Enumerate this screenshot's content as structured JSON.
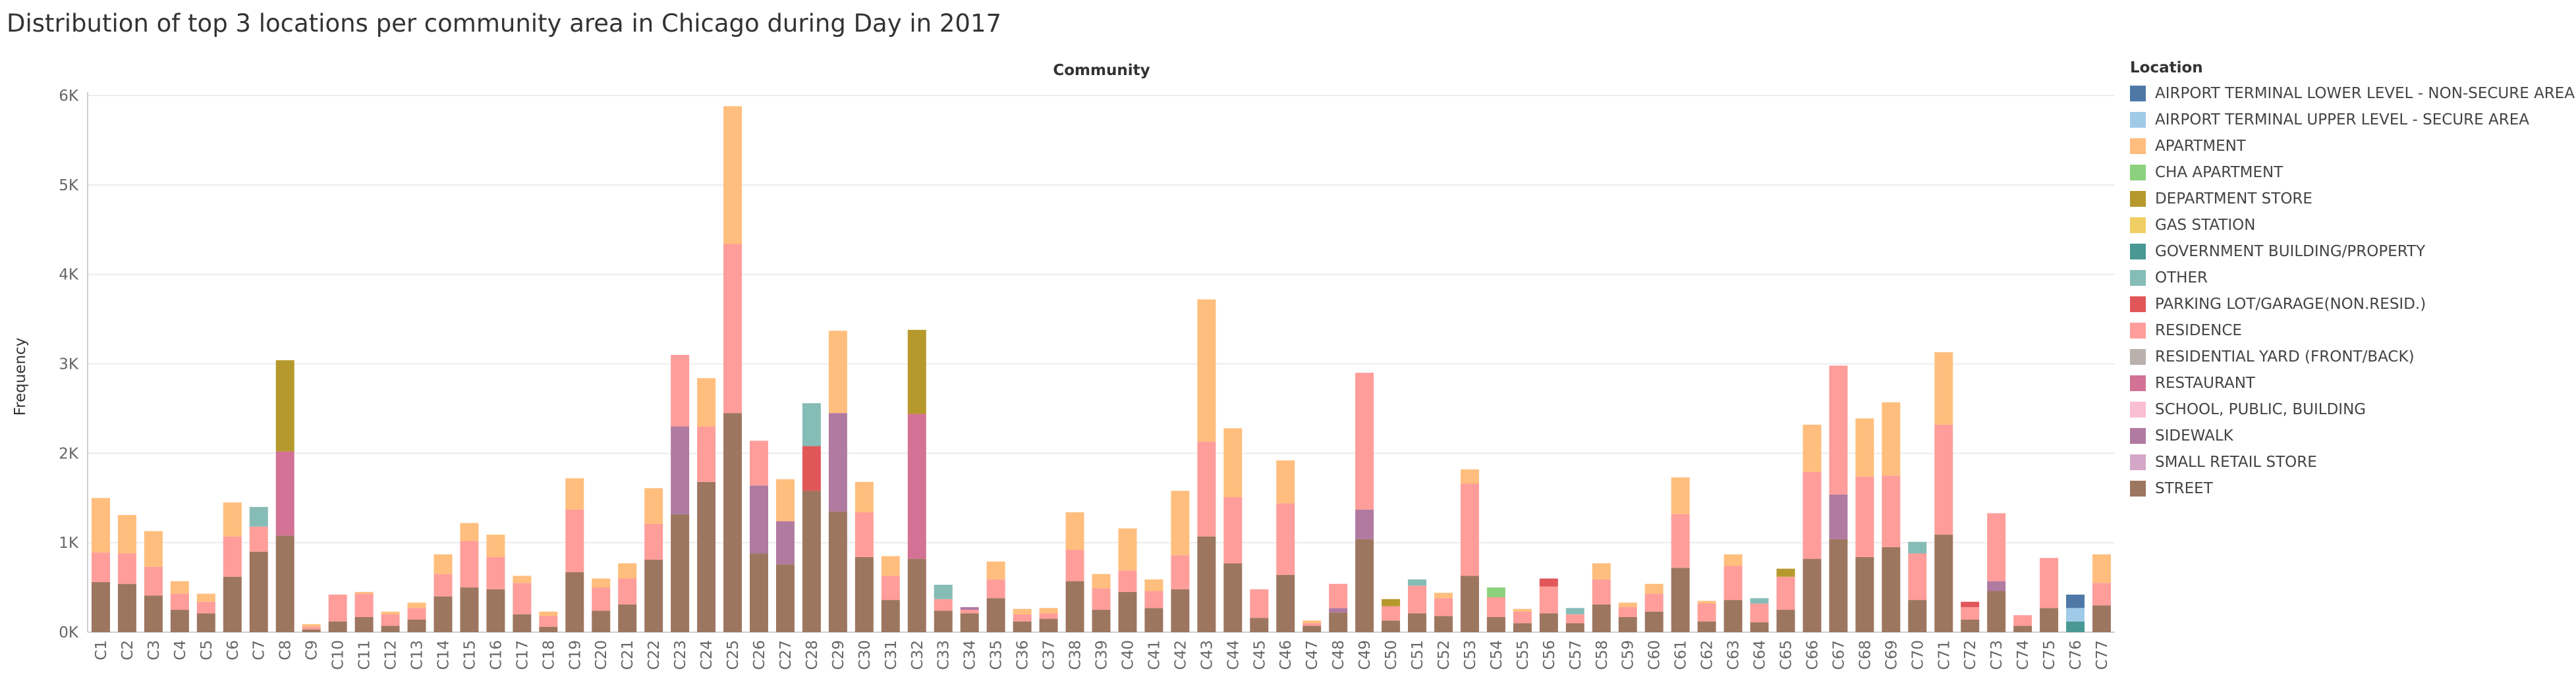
{
  "chart_data": {
    "type": "bar",
    "stacked": true,
    "title": "Distribution of top 3 locations per community area in Chicago during Day in 2017",
    "header": "Community",
    "ylabel": "Frequency",
    "ylim": [
      0,
      6000
    ],
    "y_ticks": [
      0,
      1000,
      2000,
      3000,
      4000,
      5000,
      6000
    ],
    "y_tick_labels": [
      "0K",
      "1K",
      "2K",
      "3K",
      "4K",
      "5K",
      "6K"
    ],
    "grid": "horizontal",
    "legend_position": "right",
    "legend_title": "Location",
    "locations": [
      {
        "name": "AIRPORT TERMINAL LOWER LEVEL - NON-SECURE AREA",
        "color": "#4e79a7"
      },
      {
        "name": "AIRPORT TERMINAL UPPER LEVEL - SECURE AREA",
        "color": "#a0cbe8"
      },
      {
        "name": "APARTMENT",
        "color": "#ffbe7d"
      },
      {
        "name": "CHA APARTMENT",
        "color": "#8cd17d"
      },
      {
        "name": "DEPARTMENT STORE",
        "color": "#b6992d"
      },
      {
        "name": "GAS STATION",
        "color": "#f1ce63"
      },
      {
        "name": "GOVERNMENT BUILDING/PROPERTY",
        "color": "#499894"
      },
      {
        "name": "OTHER",
        "color": "#86bcb6"
      },
      {
        "name": "PARKING LOT/GARAGE(NON.RESID.)",
        "color": "#e15759"
      },
      {
        "name": "RESIDENCE",
        "color": "#ff9d9a"
      },
      {
        "name": "RESIDENTIAL YARD (FRONT/BACK)",
        "color": "#bab0ac"
      },
      {
        "name": "RESTAURANT",
        "color": "#d37295"
      },
      {
        "name": "SCHOOL, PUBLIC, BUILDING",
        "color": "#fabfd2"
      },
      {
        "name": "SIDEWALK",
        "color": "#b07aa1"
      },
      {
        "name": "SMALL RETAIL STORE",
        "color": "#d4a6c8"
      },
      {
        "name": "STREET",
        "color": "#9d7660"
      }
    ],
    "categories": [
      "C1",
      "C2",
      "C3",
      "C4",
      "C5",
      "C6",
      "C7",
      "C8",
      "C9",
      "C10",
      "C11",
      "C12",
      "C13",
      "C14",
      "C15",
      "C16",
      "C17",
      "C18",
      "C19",
      "C20",
      "C21",
      "C22",
      "C23",
      "C24",
      "C25",
      "C26",
      "C27",
      "C28",
      "C29",
      "C30",
      "C31",
      "C32",
      "C33",
      "C34",
      "C35",
      "C36",
      "C37",
      "C38",
      "C39",
      "C40",
      "C41",
      "C42",
      "C43",
      "C44",
      "C45",
      "C46",
      "C47",
      "C48",
      "C49",
      "C50",
      "C51",
      "C52",
      "C53",
      "C54",
      "C55",
      "C56",
      "C57",
      "C58",
      "C59",
      "C60",
      "C61",
      "C62",
      "C63",
      "C64",
      "C65",
      "C66",
      "C67",
      "C68",
      "C69",
      "C70",
      "C71",
      "C72",
      "C73",
      "C74",
      "C75",
      "C76",
      "C77"
    ],
    "bars": [
      [
        [
          "STREET",
          560
        ],
        [
          "RESIDENCE",
          330
        ],
        [
          "APARTMENT",
          610
        ]
      ],
      [
        [
          "STREET",
          540
        ],
        [
          "RESIDENCE",
          340
        ],
        [
          "APARTMENT",
          430
        ]
      ],
      [
        [
          "STREET",
          410
        ],
        [
          "RESIDENCE",
          320
        ],
        [
          "APARTMENT",
          400
        ]
      ],
      [
        [
          "STREET",
          250
        ],
        [
          "RESIDENCE",
          180
        ],
        [
          "APARTMENT",
          140
        ]
      ],
      [
        [
          "STREET",
          210
        ],
        [
          "RESIDENCE",
          130
        ],
        [
          "APARTMENT",
          90
        ]
      ],
      [
        [
          "STREET",
          620
        ],
        [
          "RESIDENCE",
          450
        ],
        [
          "APARTMENT",
          380
        ]
      ],
      [
        [
          "STREET",
          900
        ],
        [
          "RESIDENCE",
          280
        ],
        [
          "OTHER",
          220
        ]
      ],
      [
        [
          "STREET",
          1080
        ],
        [
          "RESTAURANT",
          940
        ],
        [
          "DEPARTMENT STORE",
          1020
        ]
      ],
      [
        [
          "STREET",
          30
        ],
        [
          "RESIDENCE",
          30
        ],
        [
          "APARTMENT",
          30
        ]
      ],
      [
        [
          "STREET",
          120
        ],
        [
          "RESIDENCE",
          300
        ]
      ],
      [
        [
          "STREET",
          170
        ],
        [
          "RESIDENCE",
          260
        ],
        [
          "APARTMENT",
          20
        ]
      ],
      [
        [
          "STREET",
          70
        ],
        [
          "RESIDENCE",
          130
        ],
        [
          "APARTMENT",
          30
        ]
      ],
      [
        [
          "STREET",
          140
        ],
        [
          "RESIDENCE",
          130
        ],
        [
          "APARTMENT",
          60
        ]
      ],
      [
        [
          "STREET",
          400
        ],
        [
          "RESIDENCE",
          250
        ],
        [
          "APARTMENT",
          220
        ]
      ],
      [
        [
          "STREET",
          500
        ],
        [
          "RESIDENCE",
          520
        ],
        [
          "APARTMENT",
          200
        ]
      ],
      [
        [
          "STREET",
          480
        ],
        [
          "RESIDENCE",
          360
        ],
        [
          "APARTMENT",
          250
        ]
      ],
      [
        [
          "STREET",
          200
        ],
        [
          "RESIDENCE",
          350
        ],
        [
          "APARTMENT",
          80
        ]
      ],
      [
        [
          "STREET",
          60
        ],
        [
          "RESIDENCE",
          120
        ],
        [
          "APARTMENT",
          50
        ]
      ],
      [
        [
          "STREET",
          670
        ],
        [
          "RESIDENCE",
          700
        ],
        [
          "APARTMENT",
          350
        ]
      ],
      [
        [
          "STREET",
          240
        ],
        [
          "RESIDENCE",
          260
        ],
        [
          "APARTMENT",
          100
        ]
      ],
      [
        [
          "STREET",
          310
        ],
        [
          "RESIDENCE",
          290
        ],
        [
          "APARTMENT",
          170
        ]
      ],
      [
        [
          "STREET",
          810
        ],
        [
          "RESIDENCE",
          400
        ],
        [
          "APARTMENT",
          400
        ]
      ],
      [
        [
          "STREET",
          1320
        ],
        [
          "SIDEWALK",
          980
        ],
        [
          "RESIDENCE",
          800
        ]
      ],
      [
        [
          "STREET",
          1680
        ],
        [
          "RESIDENCE",
          620
        ],
        [
          "APARTMENT",
          540
        ]
      ],
      [
        [
          "STREET",
          2450
        ],
        [
          "RESIDENCE",
          1890
        ],
        [
          "APARTMENT",
          1540
        ]
      ],
      [
        [
          "STREET",
          880
        ],
        [
          "SIDEWALK",
          760
        ],
        [
          "RESIDENCE",
          500
        ]
      ],
      [
        [
          "STREET",
          760
        ],
        [
          "SIDEWALK",
          480
        ],
        [
          "APARTMENT",
          470
        ]
      ],
      [
        [
          "STREET",
          1580
        ],
        [
          "PARKING LOT/GARAGE(NON.RESID.)",
          500
        ],
        [
          "OTHER",
          480
        ]
      ],
      [
        [
          "STREET",
          1350
        ],
        [
          "SIDEWALK",
          1100
        ],
        [
          "APARTMENT",
          920
        ]
      ],
      [
        [
          "STREET",
          840
        ],
        [
          "RESIDENCE",
          500
        ],
        [
          "APARTMENT",
          340
        ]
      ],
      [
        [
          "STREET",
          360
        ],
        [
          "RESIDENCE",
          270
        ],
        [
          "APARTMENT",
          220
        ]
      ],
      [
        [
          "STREET",
          820
        ],
        [
          "RESTAURANT",
          1620
        ],
        [
          "DEPARTMENT STORE",
          940
        ]
      ],
      [
        [
          "STREET",
          240
        ],
        [
          "RESIDENCE",
          130
        ],
        [
          "OTHER",
          160
        ]
      ],
      [
        [
          "STREET",
          210
        ],
        [
          "RESIDENCE",
          40
        ],
        [
          "SIDEWALK",
          30
        ]
      ],
      [
        [
          "STREET",
          380
        ],
        [
          "RESIDENCE",
          210
        ],
        [
          "APARTMENT",
          200
        ]
      ],
      [
        [
          "STREET",
          120
        ],
        [
          "RESIDENCE",
          80
        ],
        [
          "APARTMENT",
          60
        ]
      ],
      [
        [
          "STREET",
          150
        ],
        [
          "RESIDENCE",
          60
        ],
        [
          "APARTMENT",
          60
        ]
      ],
      [
        [
          "STREET",
          570
        ],
        [
          "RESIDENCE",
          350
        ],
        [
          "APARTMENT",
          420
        ]
      ],
      [
        [
          "STREET",
          250
        ],
        [
          "RESIDENCE",
          240
        ],
        [
          "APARTMENT",
          160
        ]
      ],
      [
        [
          "STREET",
          450
        ],
        [
          "RESIDENCE",
          240
        ],
        [
          "APARTMENT",
          470
        ]
      ],
      [
        [
          "STREET",
          270
        ],
        [
          "RESIDENCE",
          190
        ],
        [
          "APARTMENT",
          130
        ]
      ],
      [
        [
          "STREET",
          480
        ],
        [
          "RESIDENCE",
          380
        ],
        [
          "APARTMENT",
          720
        ]
      ],
      [
        [
          "STREET",
          1070
        ],
        [
          "RESIDENCE",
          1060
        ],
        [
          "APARTMENT",
          1590
        ]
      ],
      [
        [
          "STREET",
          770
        ],
        [
          "RESIDENCE",
          740
        ],
        [
          "APARTMENT",
          770
        ]
      ],
      [
        [
          "STREET",
          160
        ],
        [
          "RESIDENCE",
          320
        ]
      ],
      [
        [
          "STREET",
          640
        ],
        [
          "RESIDENCE",
          800
        ],
        [
          "APARTMENT",
          480
        ]
      ],
      [
        [
          "STREET",
          70
        ],
        [
          "RESIDENCE",
          30
        ],
        [
          "APARTMENT",
          30
        ]
      ],
      [
        [
          "STREET",
          220
        ],
        [
          "SIDEWALK",
          50
        ],
        [
          "RESIDENCE",
          270
        ]
      ],
      [
        [
          "STREET",
          1040
        ],
        [
          "SIDEWALK",
          330
        ],
        [
          "RESIDENCE",
          1530
        ]
      ],
      [
        [
          "STREET",
          130
        ],
        [
          "RESIDENCE",
          160
        ],
        [
          "DEPARTMENT STORE",
          80
        ]
      ],
      [
        [
          "STREET",
          210
        ],
        [
          "RESIDENCE",
          310
        ],
        [
          "OTHER",
          70
        ]
      ],
      [
        [
          "STREET",
          180
        ],
        [
          "RESIDENCE",
          200
        ],
        [
          "APARTMENT",
          60
        ]
      ],
      [
        [
          "STREET",
          630
        ],
        [
          "RESIDENCE",
          1030
        ],
        [
          "APARTMENT",
          160
        ]
      ],
      [
        [
          "STREET",
          170
        ],
        [
          "RESIDENCE",
          220
        ],
        [
          "CHA APARTMENT",
          110
        ]
      ],
      [
        [
          "STREET",
          100
        ],
        [
          "RESIDENCE",
          130
        ],
        [
          "APARTMENT",
          30
        ]
      ],
      [
        [
          "STREET",
          210
        ],
        [
          "RESIDENCE",
          300
        ],
        [
          "PARKING LOT/GARAGE(NON.RESID.)",
          90
        ]
      ],
      [
        [
          "STREET",
          100
        ],
        [
          "RESIDENCE",
          100
        ],
        [
          "OTHER",
          70
        ]
      ],
      [
        [
          "STREET",
          310
        ],
        [
          "RESIDENCE",
          280
        ],
        [
          "APARTMENT",
          180
        ]
      ],
      [
        [
          "STREET",
          170
        ],
        [
          "RESIDENCE",
          110
        ],
        [
          "APARTMENT",
          50
        ]
      ],
      [
        [
          "STREET",
          230
        ],
        [
          "RESIDENCE",
          200
        ],
        [
          "APARTMENT",
          110
        ]
      ],
      [
        [
          "STREET",
          720
        ],
        [
          "RESIDENCE",
          600
        ],
        [
          "APARTMENT",
          410
        ]
      ],
      [
        [
          "STREET",
          120
        ],
        [
          "RESIDENCE",
          200
        ],
        [
          "APARTMENT",
          30
        ]
      ],
      [
        [
          "STREET",
          360
        ],
        [
          "RESIDENCE",
          380
        ],
        [
          "APARTMENT",
          130
        ]
      ],
      [
        [
          "STREET",
          110
        ],
        [
          "RESIDENCE",
          210
        ],
        [
          "OTHER",
          60
        ]
      ],
      [
        [
          "STREET",
          250
        ],
        [
          "RESIDENCE",
          370
        ],
        [
          "DEPARTMENT STORE",
          90
        ]
      ],
      [
        [
          "STREET",
          820
        ],
        [
          "RESIDENCE",
          970
        ],
        [
          "APARTMENT",
          530
        ]
      ],
      [
        [
          "STREET",
          1040
        ],
        [
          "SIDEWALK",
          500
        ],
        [
          "RESIDENCE",
          1440
        ]
      ],
      [
        [
          "STREET",
          840
        ],
        [
          "RESIDENCE",
          900
        ],
        [
          "APARTMENT",
          650
        ]
      ],
      [
        [
          "STREET",
          950
        ],
        [
          "RESIDENCE",
          800
        ],
        [
          "APARTMENT",
          820
        ]
      ],
      [
        [
          "STREET",
          360
        ],
        [
          "RESIDENCE",
          520
        ],
        [
          "OTHER",
          130
        ]
      ],
      [
        [
          "STREET",
          1090
        ],
        [
          "RESIDENCE",
          1230
        ],
        [
          "APARTMENT",
          810
        ]
      ],
      [
        [
          "STREET",
          140
        ],
        [
          "RESIDENCE",
          140
        ],
        [
          "PARKING LOT/GARAGE(NON.RESID.)",
          60
        ]
      ],
      [
        [
          "STREET",
          460
        ],
        [
          "SIDEWALK",
          110
        ],
        [
          "RESIDENCE",
          760
        ]
      ],
      [
        [
          "STREET",
          70
        ],
        [
          "RESIDENCE",
          120
        ]
      ],
      [
        [
          "STREET",
          270
        ],
        [
          "RESIDENCE",
          560
        ]
      ],
      [
        [
          "GOVERNMENT BUILDING/PROPERTY",
          120
        ],
        [
          "AIRPORT TERMINAL UPPER LEVEL - SECURE AREA",
          150
        ],
        [
          "AIRPORT TERMINAL LOWER LEVEL - NON-SECURE AREA",
          150
        ]
      ],
      [
        [
          "STREET",
          300
        ],
        [
          "RESIDENCE",
          250
        ],
        [
          "APARTMENT",
          320
        ]
      ]
    ]
  }
}
